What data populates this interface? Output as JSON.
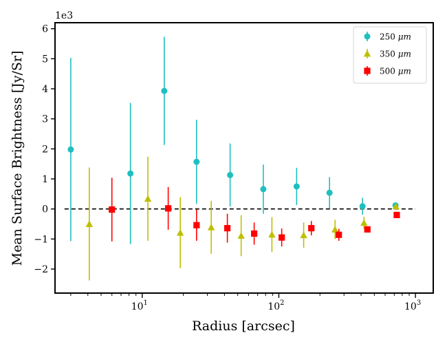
{
  "chart_data": {
    "type": "scatter",
    "title": "",
    "xlabel": "Radius [arcsec]",
    "ylabel": "Mean Surface Brightness [Jy/Sr]",
    "y_scale_label": "1e3",
    "xscale": "log",
    "xlim": [
      2.3,
      1350
    ],
    "ylim": [
      -2.8,
      6.2
    ],
    "x_major_ticks": [
      10,
      100,
      1000
    ],
    "x_major_tick_labels": [
      "10",
      "10",
      "10"
    ],
    "x_major_tick_exponents": [
      "1",
      "2",
      "3"
    ],
    "y_ticks": [
      -2,
      -1,
      0,
      1,
      2,
      3,
      4,
      5,
      6
    ],
    "y_tick_labels": [
      "−2",
      "−1",
      "0",
      "1",
      "2",
      "3",
      "4",
      "5",
      "6"
    ],
    "legend_position": "top-right",
    "reference_line": {
      "y": 0,
      "x_range": [
        2.7,
        1000
      ],
      "style": "dashed",
      "color": "#000000"
    },
    "series": [
      {
        "name": "250 μm",
        "legend_prefix": "250 ",
        "legend_unit": "μm",
        "marker": "circle",
        "color": "#1fbfbf",
        "x": [
          3.0,
          8.2,
          14.5,
          25,
          44,
          77,
          135,
          235,
          410,
          715
        ],
        "y": [
          1.98,
          1.18,
          3.93,
          1.57,
          1.13,
          0.66,
          0.75,
          0.54,
          0.09,
          0.12
        ],
        "yerr": [
          3.05,
          2.35,
          1.8,
          1.4,
          1.05,
          0.82,
          0.62,
          0.52,
          0.28,
          0.08
        ]
      },
      {
        "name": "350 μm",
        "legend_prefix": "350 ",
        "legend_unit": "μm",
        "marker": "triangle",
        "color": "#bfbf00",
        "x": [
          4.1,
          11,
          19,
          32,
          53,
          89,
          152,
          258,
          420,
          720
        ],
        "y": [
          -0.5,
          0.34,
          -0.79,
          -0.61,
          -0.89,
          -0.85,
          -0.87,
          -0.68,
          -0.46,
          0.09
        ],
        "yerr": [
          1.88,
          1.4,
          1.18,
          0.88,
          0.68,
          0.58,
          0.42,
          0.32,
          0.2,
          0.06
        ]
      },
      {
        "name": "500 μm",
        "legend_prefix": "500 ",
        "legend_unit": "μm",
        "marker": "square",
        "color": "#ff0000",
        "x": [
          6,
          15.5,
          25,
          42,
          66,
          105,
          173,
          275,
          445,
          730
        ],
        "y": [
          -0.02,
          0.02,
          -0.54,
          -0.64,
          -0.82,
          -0.95,
          -0.64,
          -0.86,
          -0.68,
          -0.2
        ],
        "yerr": [
          1.06,
          0.71,
          0.52,
          0.48,
          0.37,
          0.3,
          0.24,
          0.2,
          0.1,
          0.05
        ]
      }
    ]
  }
}
